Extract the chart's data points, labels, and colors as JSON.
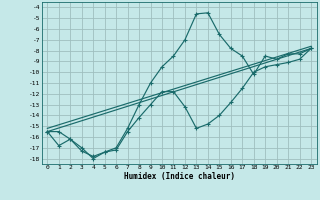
{
  "xlabel": "Humidex (Indice chaleur)",
  "bg_color": "#c5e8e8",
  "grid_color": "#9fbfbf",
  "line_color": "#1a6b6b",
  "xlim": [
    -0.5,
    23.5
  ],
  "ylim": [
    -18.5,
    -3.5
  ],
  "xticks": [
    0,
    1,
    2,
    3,
    4,
    5,
    6,
    7,
    8,
    9,
    10,
    11,
    12,
    13,
    14,
    15,
    16,
    17,
    18,
    19,
    20,
    21,
    22,
    23
  ],
  "yticks": [
    -18,
    -17,
    -16,
    -15,
    -14,
    -13,
    -12,
    -11,
    -10,
    -9,
    -8,
    -7,
    -6,
    -5,
    -4
  ],
  "line1_x": [
    0,
    1,
    2,
    3,
    4,
    5,
    6,
    7,
    8,
    9,
    10,
    11,
    12,
    13,
    14,
    15,
    16,
    17,
    18,
    19,
    20,
    21,
    22,
    23
  ],
  "line1_y": [
    -15.5,
    -16.8,
    -16.2,
    -17.3,
    -17.8,
    -17.4,
    -17.0,
    -15.2,
    -13.0,
    -11.0,
    -9.5,
    -8.5,
    -7.0,
    -4.6,
    -4.5,
    -6.5,
    -7.8,
    -8.5,
    -10.2,
    -8.5,
    -8.8,
    -8.3,
    -8.3,
    -7.8
  ],
  "line2_x": [
    0,
    1,
    2,
    3,
    4,
    5,
    6,
    7,
    8,
    9,
    10,
    11,
    12,
    13,
    14,
    15,
    16,
    17,
    18,
    19,
    20,
    21,
    22,
    23
  ],
  "line2_y": [
    -15.5,
    -15.5,
    -16.2,
    -17.0,
    -18.0,
    -17.4,
    -17.2,
    -15.5,
    -14.2,
    -13.0,
    -11.8,
    -11.8,
    -13.2,
    -15.2,
    -14.8,
    -14.0,
    -12.8,
    -11.5,
    -10.0,
    -9.5,
    -9.3,
    -9.1,
    -8.8,
    -7.8
  ],
  "line3_x": [
    0,
    23
  ],
  "line3_y": [
    -15.5,
    -7.8
  ],
  "line4_x": [
    0,
    23
  ],
  "line4_y": [
    -15.2,
    -7.6
  ]
}
